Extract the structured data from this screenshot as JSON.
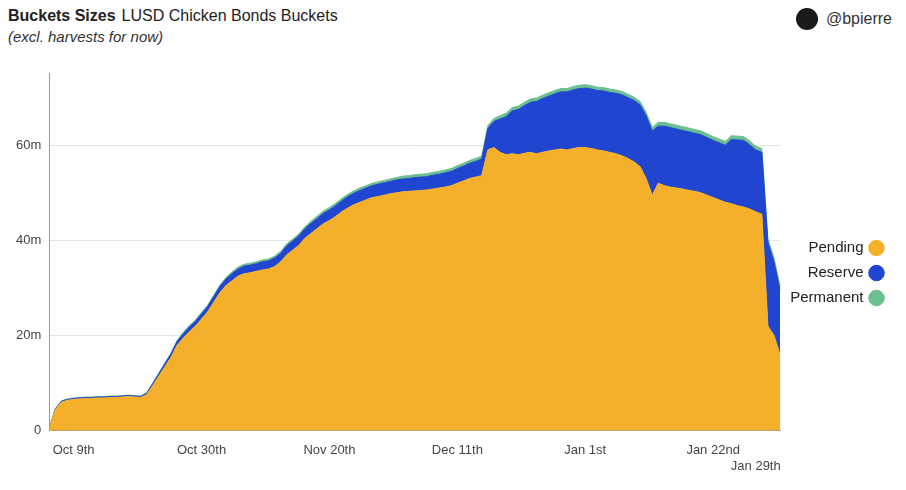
{
  "chart_data": {
    "type": "area",
    "title": "Buckets Sizes",
    "subtitle": "LUSD Chicken Bonds Buckets",
    "annotations": [
      "(excl. harvests for now)",
      "@bpierre"
    ],
    "stacked": true,
    "grid": true,
    "legend": "right",
    "ylim": [
      0,
      75
    ],
    "yticks": [
      0,
      {
        "value": 20,
        "label": "20m"
      },
      {
        "value": 40,
        "label": "40m"
      },
      {
        "value": 60,
        "label": "60m"
      }
    ],
    "categories": [
      null,
      null,
      null,
      null,
      "Oct 9th",
      null,
      null,
      null,
      null,
      null,
      null,
      null,
      null,
      null,
      null,
      null,
      null,
      null,
      null,
      null,
      null,
      null,
      null,
      null,
      null,
      "Oct 30th",
      null,
      null,
      null,
      null,
      null,
      null,
      null,
      null,
      null,
      null,
      null,
      null,
      null,
      null,
      null,
      null,
      null,
      null,
      null,
      null,
      "Nov 20th",
      null,
      null,
      null,
      null,
      null,
      null,
      null,
      null,
      null,
      null,
      null,
      null,
      null,
      null,
      null,
      null,
      null,
      null,
      null,
      null,
      "Dec 11th",
      null,
      null,
      null,
      null,
      null,
      null,
      null,
      null,
      null,
      null,
      null,
      null,
      null,
      null,
      null,
      null,
      null,
      null,
      null,
      null,
      "Jan 1st",
      null,
      null,
      null,
      null,
      null,
      null,
      null,
      null,
      null,
      null,
      null,
      null,
      null,
      null,
      null,
      null,
      null,
      null,
      null,
      null,
      "Jan 22nd",
      null,
      null,
      null,
      null,
      null,
      null,
      "Jan 29th",
      null,
      null,
      null,
      null
    ],
    "series": [
      {
        "name": "Pending",
        "color": "#f4b02a",
        "values": [
          0.5,
          4.5,
          6.0,
          6.4,
          6.6,
          6.7,
          6.8,
          6.8,
          6.9,
          6.9,
          7.0,
          7.0,
          7.1,
          7.2,
          7.1,
          7.0,
          7.6,
          9.5,
          11.5,
          13.5,
          15.5,
          18.0,
          19.5,
          20.8,
          22.0,
          23.5,
          25.0,
          27.0,
          29.0,
          30.5,
          31.5,
          32.5,
          33.0,
          33.2,
          33.5,
          33.8,
          34.0,
          34.5,
          35.5,
          37.0,
          38.0,
          39.0,
          40.5,
          41.5,
          42.5,
          43.5,
          44.2,
          45.0,
          46.0,
          46.8,
          47.5,
          48.0,
          48.5,
          49.0,
          49.2,
          49.5,
          49.8,
          50.0,
          50.2,
          50.3,
          50.4,
          50.5,
          50.6,
          50.8,
          51.0,
          51.2,
          51.5,
          52.0,
          52.5,
          53.0,
          53.3,
          53.6,
          59.0,
          59.5,
          58.5,
          58.0,
          58.2,
          58.0,
          58.3,
          58.5,
          58.2,
          58.5,
          58.8,
          59.0,
          59.2,
          59.0,
          59.3,
          59.5,
          59.5,
          59.3,
          59.0,
          58.8,
          58.5,
          58.2,
          57.8,
          57.2,
          56.5,
          55.5,
          53.0,
          49.5,
          52.0,
          51.5,
          51.2,
          51.0,
          50.8,
          50.5,
          50.3,
          50.0,
          49.5,
          49.0,
          48.5,
          48.0,
          47.7,
          47.3,
          47.0,
          46.6,
          46.0,
          45.5,
          22.0,
          20.0,
          16.0
        ]
      },
      {
        "name": "Reserve",
        "color": "#2045d0",
        "values": [
          0,
          0.1,
          0.2,
          0.2,
          0.2,
          0.2,
          0.2,
          0.2,
          0.2,
          0.2,
          0.2,
          0.2,
          0.2,
          0.2,
          0.2,
          0.2,
          0.3,
          0.4,
          0.5,
          0.6,
          0.7,
          0.8,
          0.9,
          1.0,
          1.0,
          1.1,
          1.1,
          1.2,
          1.3,
          1.4,
          1.5,
          1.5,
          1.6,
          1.6,
          1.6,
          1.7,
          1.7,
          1.8,
          1.8,
          1.9,
          1.9,
          2.0,
          2.0,
          2.1,
          2.1,
          2.2,
          2.2,
          2.3,
          2.3,
          2.4,
          2.4,
          2.5,
          2.5,
          2.5,
          2.6,
          2.6,
          2.6,
          2.7,
          2.7,
          2.7,
          2.8,
          2.8,
          2.8,
          2.9,
          2.9,
          3.0,
          3.0,
          3.1,
          3.1,
          3.2,
          3.3,
          3.5,
          4.5,
          5.5,
          7.0,
          8.0,
          9.0,
          9.5,
          10.0,
          10.5,
          11.0,
          11.3,
          11.5,
          11.8,
          12.0,
          12.2,
          12.3,
          12.4,
          12.5,
          12.5,
          12.5,
          12.6,
          12.6,
          12.7,
          12.8,
          12.8,
          12.9,
          13.0,
          13.2,
          13.5,
          12.0,
          12.5,
          12.5,
          12.4,
          12.3,
          12.3,
          12.2,
          12.2,
          12.1,
          12.0,
          12.0,
          12.0,
          13.5,
          13.8,
          14.0,
          13.5,
          13.0,
          13.0,
          17.5,
          15.5,
          13.5
        ]
      },
      {
        "name": "Permanent",
        "color": "#6cbf8f",
        "values": [
          0,
          0.1,
          0.1,
          0.1,
          0.1,
          0.1,
          0.1,
          0.1,
          0.1,
          0.1,
          0.1,
          0.1,
          0.1,
          0.1,
          0.1,
          0.1,
          0.1,
          0.2,
          0.2,
          0.2,
          0.2,
          0.2,
          0.3,
          0.3,
          0.3,
          0.3,
          0.3,
          0.3,
          0.3,
          0.3,
          0.4,
          0.4,
          0.4,
          0.4,
          0.4,
          0.4,
          0.4,
          0.4,
          0.4,
          0.4,
          0.4,
          0.4,
          0.4,
          0.5,
          0.5,
          0.5,
          0.5,
          0.5,
          0.5,
          0.5,
          0.5,
          0.5,
          0.5,
          0.5,
          0.5,
          0.5,
          0.5,
          0.5,
          0.6,
          0.6,
          0.6,
          0.6,
          0.6,
          0.6,
          0.6,
          0.6,
          0.6,
          0.6,
          0.6,
          0.6,
          0.6,
          0.6,
          0.6,
          0.6,
          0.7,
          0.7,
          0.7,
          0.7,
          0.7,
          0.7,
          0.7,
          0.7,
          0.7,
          0.7,
          0.7,
          0.7,
          0.7,
          0.7,
          0.7,
          0.7,
          0.7,
          0.7,
          0.7,
          0.7,
          0.7,
          0.7,
          0.7,
          0.7,
          0.7,
          0.7,
          0.8,
          0.8,
          0.8,
          0.8,
          0.8,
          0.8,
          0.8,
          0.8,
          0.8,
          0.8,
          0.8,
          0.8,
          0.8,
          0.8,
          0.8,
          0.8,
          0.8,
          0.8,
          0.8,
          0.8,
          0.8
        ]
      }
    ]
  }
}
